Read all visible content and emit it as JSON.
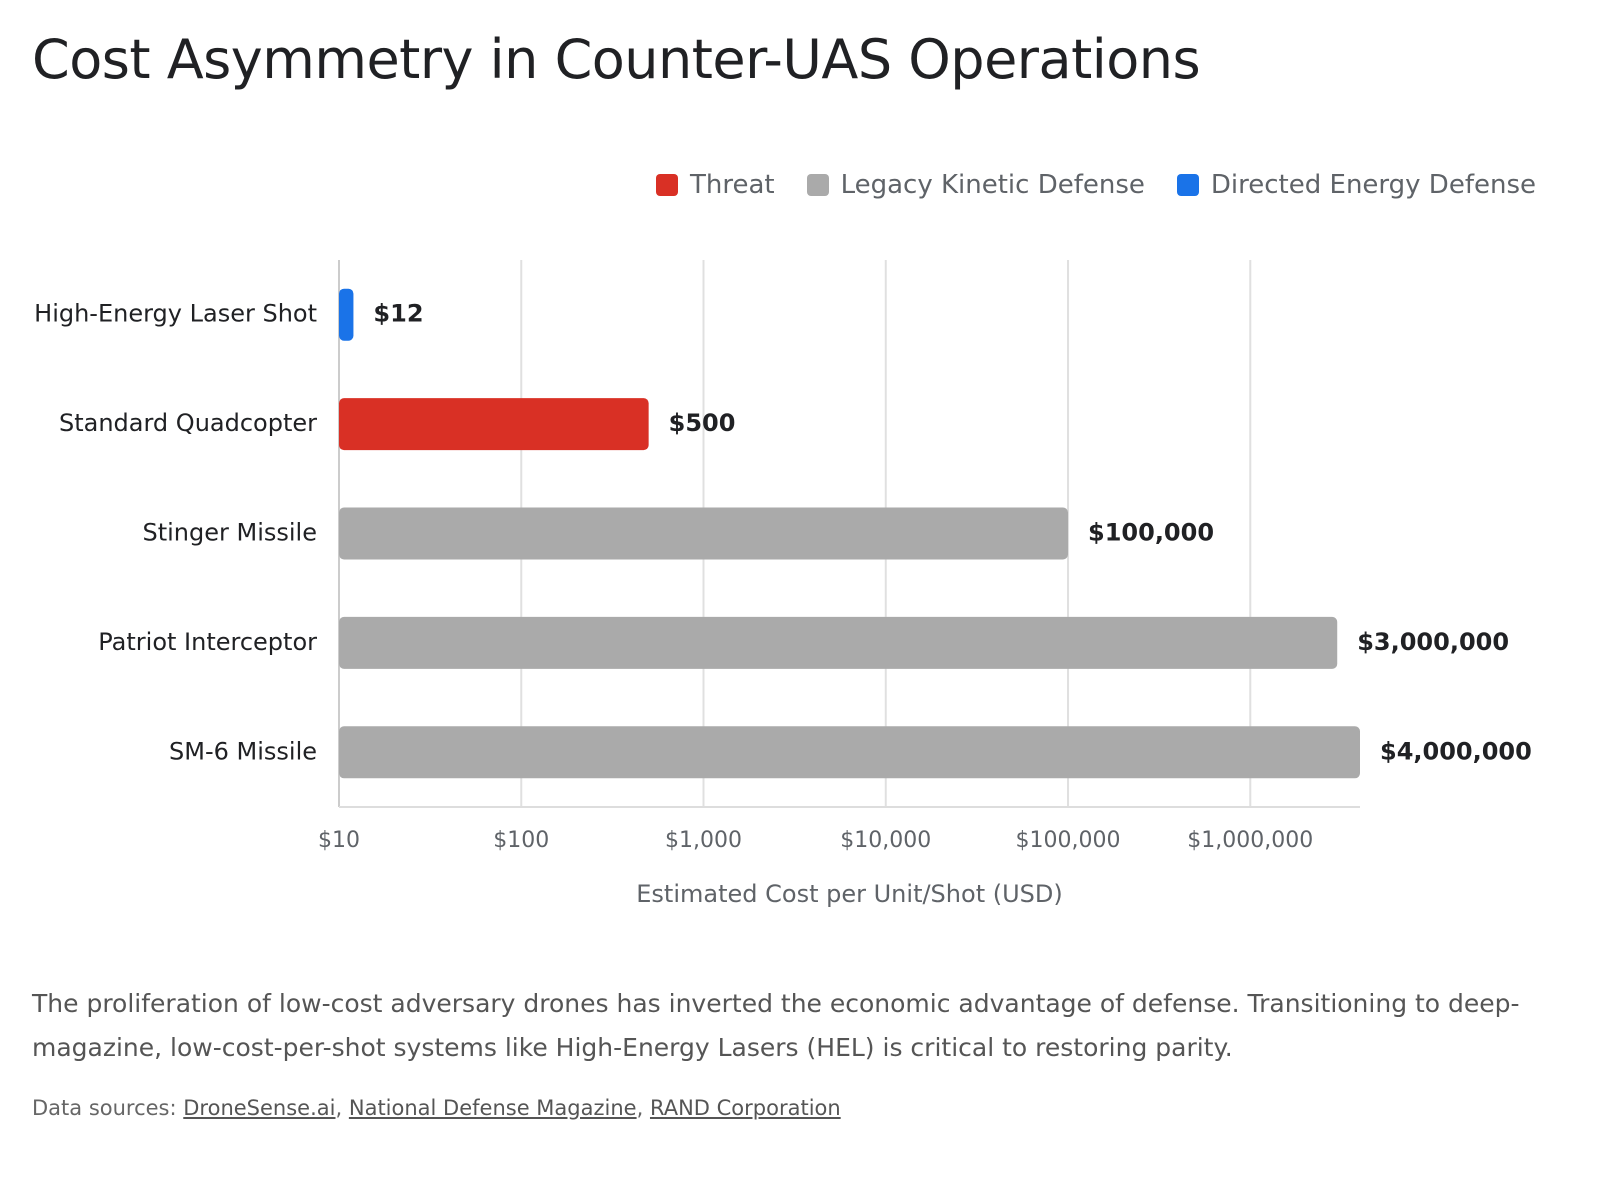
{
  "chart_data": {
    "type": "bar",
    "orientation": "horizontal",
    "title": "Cost Asymmetry in Counter-UAS Operations",
    "categories": [
      "High-Energy Laser Shot",
      "Standard Quadcopter",
      "Stinger Missile",
      "Patriot Interceptor",
      "SM-6 Missile"
    ],
    "series": [
      {
        "name": "Threat",
        "color": "#d93025",
        "values": [
          null,
          500,
          null,
          null,
          null
        ],
        "value_labels": [
          null,
          "$500",
          null,
          null,
          null
        ]
      },
      {
        "name": "Legacy Kinetic Defense",
        "color": "#aaaaaa",
        "values": [
          null,
          null,
          100000,
          3000000,
          4000000
        ],
        "value_labels": [
          null,
          null,
          "$100,000",
          "$3,000,000",
          "$4,000,000"
        ]
      },
      {
        "name": "Directed Energy Defense",
        "color": "#1a73e8",
        "values": [
          12,
          null,
          null,
          null,
          null
        ],
        "value_labels": [
          "$12",
          null,
          null,
          null,
          null
        ]
      }
    ],
    "x_label": "Estimated Cost per Unit/Shot (USD)",
    "x_scale": "log",
    "xlim": [
      10,
      4000000
    ],
    "xticks": [
      {
        "value": 10,
        "label": "$10"
      },
      {
        "value": 100,
        "label": "$100"
      },
      {
        "value": 1000,
        "label": "$1,000"
      },
      {
        "value": 10000,
        "label": "$10,000"
      },
      {
        "value": 100000,
        "label": "$100,000"
      },
      {
        "value": 1000000,
        "label": "$1,000,000"
      }
    ],
    "grid": true,
    "legend": "top-right"
  },
  "description": "The proliferation of low-cost adversary drones has inverted the economic advantage of defense. Transitioning to deep-magazine, low-cost-per-shot systems like High-Energy Lasers (HEL) is critical to restoring parity.",
  "sources": {
    "label": "Data sources:",
    "separator": ",",
    "links": [
      "DroneSense.ai",
      "National Defense Magazine",
      "RAND Corporation"
    ]
  }
}
